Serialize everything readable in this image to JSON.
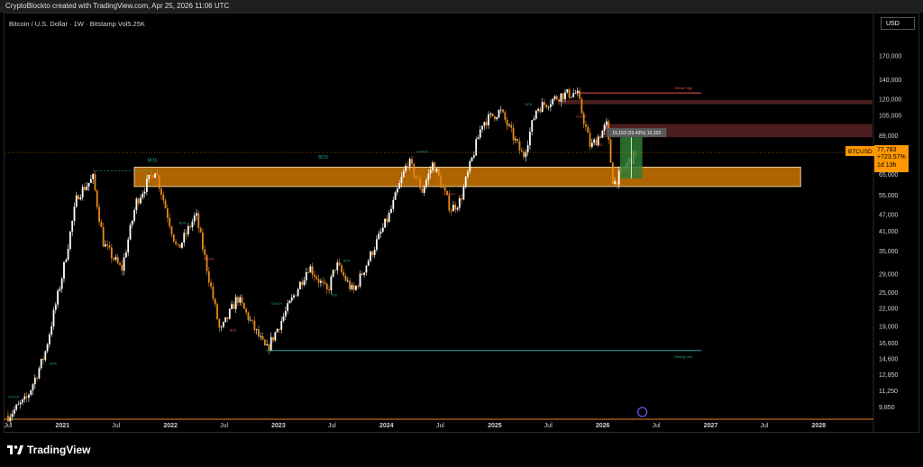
{
  "header": {
    "attribution": "CryptoBlockto created with TradingView.com, Apr 25, 2026 11:06 UTC"
  },
  "symbol_line": "Bitcoin / U.S. Dollar · 1W · Bitstamp  Vol5.25K",
  "currency_label": "USD",
  "footer": {
    "logo_text": "TradingView"
  },
  "colors": {
    "bull": "#ffffff",
    "bear": "#e88a1a",
    "zone_orange": "#b86a00",
    "zone_border": "#f5d9a8",
    "resistance_zone": "#4a1e1e",
    "green_box": "#2e7d32",
    "price_tag": "#ff9800",
    "bos_text": "#26a69a",
    "choch_text": "#ef5350"
  },
  "chart_data": {
    "type": "candlestick",
    "title": "Bitcoin / U.S. Dollar · 1W · Bitstamp",
    "y_scale": "log",
    "ylim": [
      9000,
      215000
    ],
    "y_ticks": [
      "170,000",
      "140,000",
      "120,000",
      "105,000",
      "89,000",
      "65,000",
      "55,000",
      "47,000",
      "41,000",
      "35,000",
      "29,000",
      "25,000",
      "22,000",
      "19,000",
      "16,600",
      "14,600",
      "12,850",
      "11,250",
      "9,850"
    ],
    "x_ticks": [
      "Jul",
      "2021",
      "Jul",
      "2022",
      "Jul",
      "2023",
      "Jul",
      "2024",
      "Jul",
      "2025",
      "Jul",
      "2026",
      "Jul",
      "2027",
      "Jul",
      "2028"
    ],
    "x_year_ticks": [
      "2021",
      "2022",
      "2023",
      "2024",
      "2025",
      "2026",
      "2027",
      "2028"
    ],
    "price_path": [
      [
        "2020-07-01",
        9200
      ],
      [
        "2020-09-01",
        10500
      ],
      [
        "2020-11-01",
        15000
      ],
      [
        "2021-01-01",
        29000
      ],
      [
        "2021-02-20",
        55000
      ],
      [
        "2021-04-14",
        63000
      ],
      [
        "2021-05-20",
        37000
      ],
      [
        "2021-07-20",
        30000
      ],
      [
        "2021-09-07",
        52000
      ],
      [
        "2021-11-10",
        68000
      ],
      [
        "2022-01-24",
        35000
      ],
      [
        "2022-03-28",
        47000
      ],
      [
        "2022-06-18",
        18000
      ],
      [
        "2022-08-15",
        24000
      ],
      [
        "2022-11-21",
        15600
      ],
      [
        "2023-04-14",
        31000
      ],
      [
        "2023-06-15",
        25000
      ],
      [
        "2023-07-15",
        31500
      ],
      [
        "2023-09-11",
        25000
      ],
      [
        "2024-01-11",
        47000
      ],
      [
        "2024-03-14",
        73000
      ],
      [
        "2024-05-01",
        57000
      ],
      [
        "2024-06-07",
        71500
      ],
      [
        "2024-08-05",
        49000
      ],
      [
        "2024-09-06",
        52500
      ],
      [
        "2024-11-20",
        99000
      ],
      [
        "2025-01-20",
        109000
      ],
      [
        "2025-04-07",
        75000
      ],
      [
        "2025-05-22",
        111000
      ],
      [
        "2025-08-14",
        124000
      ],
      [
        "2025-10-06",
        126000
      ],
      [
        "2025-11-21",
        81000
      ],
      [
        "2026-01-14",
        97000
      ],
      [
        "2026-02-06",
        60000
      ],
      [
        "2026-03-20",
        70000
      ],
      [
        "2026-04-25",
        77783
      ]
    ],
    "current_price": {
      "symbol": "BTCUSD",
      "price": "77,783",
      "change": "+723.57%",
      "countdown": "1d 13h"
    },
    "measurement_label": "15,153 (23.43%) 15,153",
    "zones": [
      {
        "name": "main-support",
        "from": "2021-09-01",
        "to": "2027-11-01",
        "low": 59000,
        "high": 69000
      },
      {
        "name": "resistance-upper",
        "from": "2025-08-15",
        "to": "2028-06-30",
        "low": 115000,
        "high": 119000
      },
      {
        "name": "resistance-lower",
        "from": "2026-01-01",
        "to": "2028-06-30",
        "low": 88000,
        "high": 98000
      }
    ],
    "levels": [
      {
        "label": "Weak High",
        "price": 126000,
        "from": "2025-10-06",
        "to": "2026-12-01",
        "color": "#ef5350"
      },
      {
        "label": "Strong Low",
        "price": 15600,
        "from": "2022-11-21",
        "to": "2026-12-01",
        "color": "#26a69a"
      }
    ],
    "annotations": [
      {
        "text": "BOS",
        "date": "2021-11-01",
        "price": 72000,
        "color": "#26a69a"
      },
      {
        "text": "BOS",
        "date": "2023-06-01",
        "price": 74000,
        "color": "#26a69a"
      },
      {
        "text": "CHoCH",
        "date": "2024-05-01",
        "price": 77500,
        "color": "#26a69a"
      },
      {
        "text": "CHoCH",
        "date": "2024-08-01",
        "price": 55000,
        "color": "#ef5350"
      },
      {
        "text": "CHoCH",
        "date": "2022-05-10",
        "price": 32500,
        "color": "#ef5350"
      },
      {
        "text": "BOS",
        "date": "2022-02-10",
        "price": 43500,
        "color": "#26a69a"
      },
      {
        "text": "CHoCH",
        "date": "2022-12-25",
        "price": 22600,
        "color": "#26a69a"
      },
      {
        "text": "BOS",
        "date": "2023-08-20",
        "price": 32000,
        "color": "#26a69a"
      },
      {
        "text": "BOS",
        "date": "2020-12-01",
        "price": 13900,
        "color": "#26a69a"
      },
      {
        "text": "CHoCH",
        "date": "2020-07-20",
        "price": 10600,
        "color": "#26a69a"
      },
      {
        "text": "BOS",
        "date": "2025-04-25",
        "price": 114000,
        "color": "#26a69a"
      },
      {
        "text": "CHoCH",
        "date": "2025-10-20",
        "price": 103000,
        "color": "#ef5350"
      },
      {
        "text": "BOS",
        "date": "2025-12-20",
        "price": 82000,
        "color": "#ef5350"
      },
      {
        "text": "BOS",
        "date": "2022-08-01",
        "price": 18200,
        "color": "#ef5350"
      },
      {
        "text": "SSL",
        "date": "2023-07-10",
        "price": 24200,
        "color": "#26a69a"
      }
    ]
  }
}
